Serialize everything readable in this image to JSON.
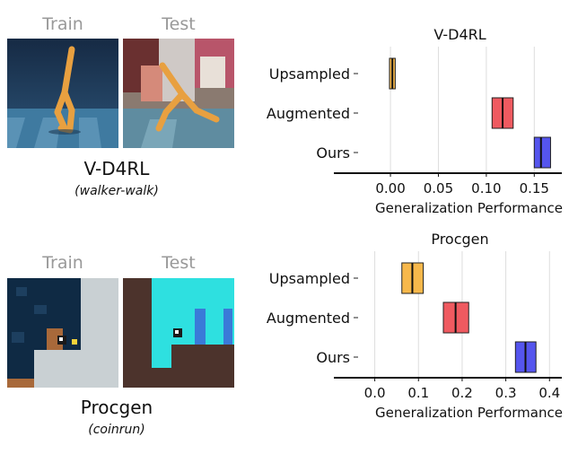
{
  "left_panels": [
    {
      "train_label": "Train",
      "test_label": "Test",
      "env_name": "V-D4RL",
      "env_task": "(walker-walk)"
    },
    {
      "train_label": "Train",
      "test_label": "Test",
      "env_name": "Procgen",
      "env_task": "(coinrun)"
    }
  ],
  "colors": {
    "upsampled": "#f7b84b",
    "augmented": "#ef5a60",
    "ours": "#5555ee",
    "grid": "#dddddd"
  },
  "chart_data": [
    {
      "type": "boxplot",
      "title": "V-D4RL",
      "xlabel": "Generalization Performance",
      "ylabel": "",
      "xlim": [
        -0.03,
        0.175
      ],
      "xticks": [
        "0.00",
        "0.05",
        "0.10",
        "0.15"
      ],
      "xtick_values": [
        0.0,
        0.05,
        0.1,
        0.15
      ],
      "grid": true,
      "categories": [
        "Upsampled",
        "Augmented",
        "Ours"
      ],
      "series": [
        {
          "category": "Upsampled",
          "q1": -0.001,
          "median": 0.002,
          "q3": 0.005,
          "color": "#f7b84b"
        },
        {
          "category": "Augmented",
          "q1": 0.106,
          "median": 0.117,
          "q3": 0.128,
          "color": "#ef5a60"
        },
        {
          "category": "Ours",
          "q1": 0.15,
          "median": 0.157,
          "q3": 0.167,
          "color": "#5555ee"
        }
      ]
    },
    {
      "type": "boxplot",
      "title": "Procgen",
      "xlabel": "Generalization Performance",
      "ylabel": "",
      "xlim": [
        -0.03,
        0.42
      ],
      "xticks": [
        "0.0",
        "0.1",
        "0.2",
        "0.3",
        "0.4"
      ],
      "xtick_values": [
        0.0,
        0.1,
        0.2,
        0.3,
        0.4
      ],
      "grid": true,
      "categories": [
        "Upsampled",
        "Augmented",
        "Ours"
      ],
      "series": [
        {
          "category": "Upsampled",
          "q1": 0.062,
          "median": 0.086,
          "q3": 0.111,
          "color": "#f7b84b"
        },
        {
          "category": "Augmented",
          "q1": 0.157,
          "median": 0.185,
          "q3": 0.215,
          "color": "#ef5a60"
        },
        {
          "category": "Ours",
          "q1": 0.322,
          "median": 0.345,
          "q3": 0.369,
          "color": "#5555ee"
        }
      ]
    }
  ]
}
